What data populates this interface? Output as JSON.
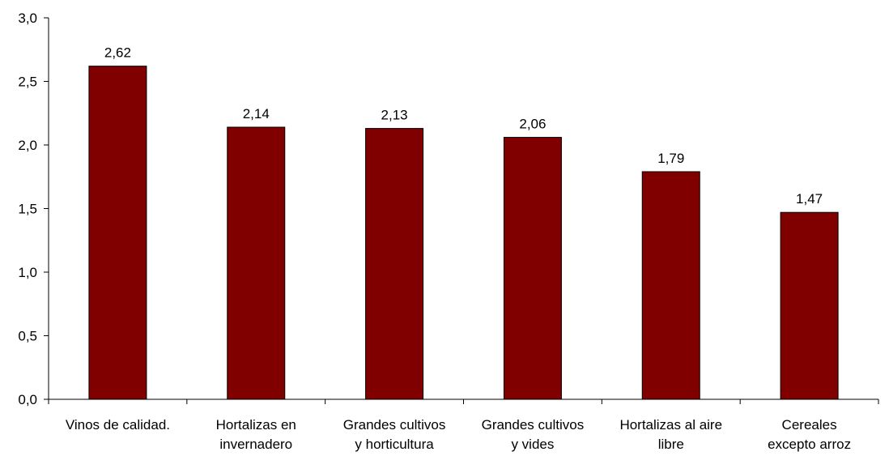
{
  "chart_data": {
    "type": "bar",
    "title": "",
    "xlabel": "",
    "ylabel": "",
    "categories": [
      [
        "Vinos de calidad."
      ],
      [
        "Hortalizas en",
        "invernadero"
      ],
      [
        "Grandes cultivos",
        "y horticultura"
      ],
      [
        "Grandes cultivos",
        "y vides"
      ],
      [
        "Hortalizas al aire",
        "libre"
      ],
      [
        "Cereales",
        "excepto arroz"
      ]
    ],
    "values": [
      2.62,
      2.14,
      2.13,
      2.06,
      1.79,
      1.47
    ],
    "value_labels": [
      "2,62",
      "2,14",
      "2,13",
      "2,06",
      "1,79",
      "1,47"
    ],
    "ylim": [
      0,
      3.0
    ],
    "yticks": [
      0,
      0.5,
      1.0,
      1.5,
      2.0,
      2.5,
      3.0
    ],
    "ytick_labels": [
      "0,0",
      "0,5",
      "1,0",
      "1,5",
      "2,0",
      "2,5",
      "3,0"
    ],
    "bar_color": "#800000",
    "grid": false,
    "legend": "none"
  }
}
